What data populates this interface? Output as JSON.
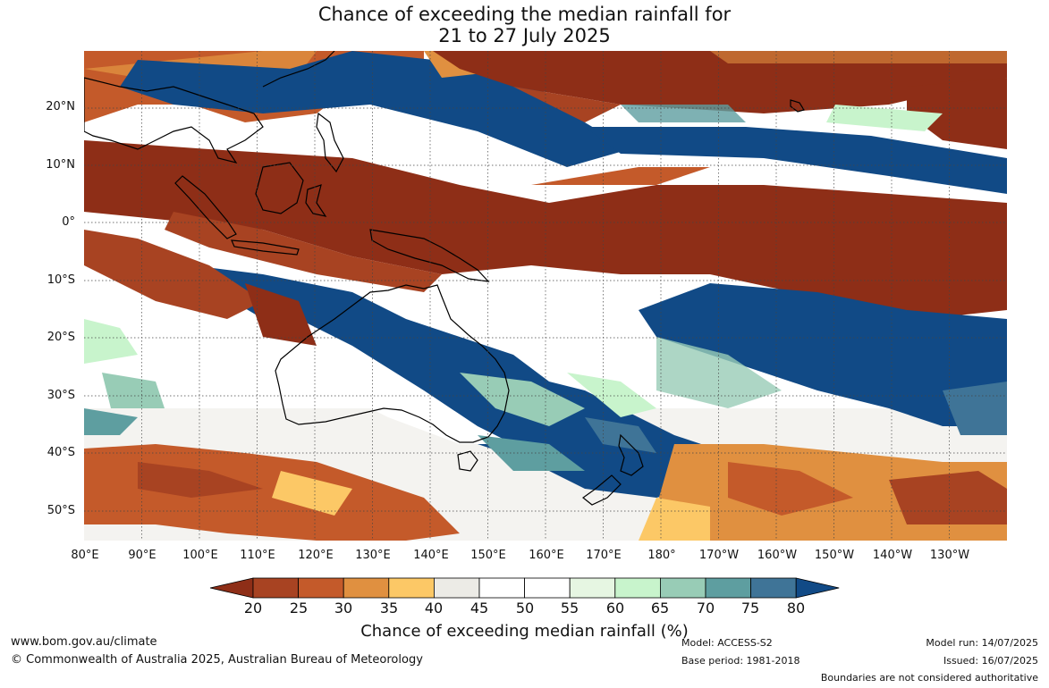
{
  "title": {
    "line1": "Chance of exceeding the median rainfall for",
    "line2": "21 to 27 July 2025"
  },
  "map": {
    "lat_labels": [
      "20°N",
      "10°N",
      "0°",
      "10°S",
      "20°S",
      "30°S",
      "40°S",
      "50°S"
    ],
    "lon_labels": [
      "80°E",
      "90°E",
      "100°E",
      "110°E",
      "120°E",
      "130°E",
      "140°E",
      "150°E",
      "160°E",
      "170°E",
      "180°",
      "170°W",
      "160°W",
      "150°W",
      "140°W",
      "130°W"
    ],
    "palette": {
      "lt20": "#8e2e17",
      "20_25": "#a84322",
      "25_30": "#c45a2a",
      "30_35": "#e09040",
      "35_40": "#fcc866",
      "40_45": "#ecebe6",
      "45_55": "#ffffff",
      "55_60": "#e6f6e2",
      "60_65": "#c8f4cc",
      "65_70": "#98ccb6",
      "70_75": "#5e9ea0",
      "75_80": "#3f7497",
      "gt80": "#114a86"
    }
  },
  "colorbar": {
    "ticks": [
      "20",
      "25",
      "30",
      "35",
      "40",
      "45",
      "50",
      "55",
      "60",
      "65",
      "70",
      "75",
      "80"
    ],
    "colors": [
      "#8e2e17",
      "#a84322",
      "#c45a2a",
      "#e09040",
      "#fcc866",
      "#ecebe6",
      "#ffffff",
      "#ffffff",
      "#e6f6e2",
      "#c8f4cc",
      "#98ccb6",
      "#5e9ea0",
      "#3f7497",
      "#114a86"
    ],
    "label": "Chance of exceeding median rainfall (%)"
  },
  "footer": {
    "website": "www.bom.gov.au/climate",
    "copyright": "© Commonwealth of Australia 2025, Australian Bureau of Meteorology",
    "model": "Model: ACCESS-S2",
    "base_period": "Base period: 1981-2018",
    "model_run": "Model run: 14/07/2025",
    "issued": "Issued: 16/07/2025",
    "disclaimer": "Boundaries are not considered authoritative"
  }
}
